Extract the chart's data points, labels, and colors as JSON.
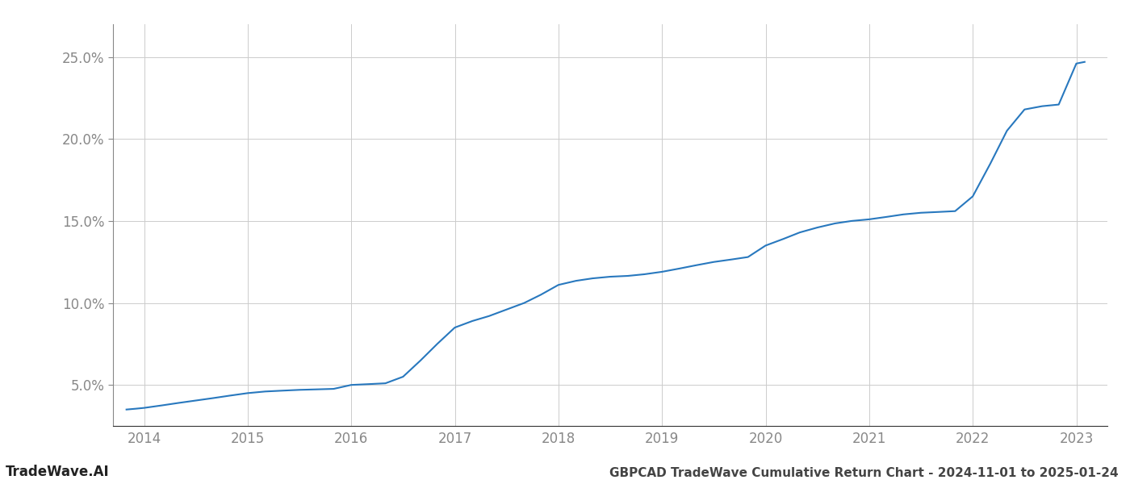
{
  "title": "GBPCAD TradeWave Cumulative Return Chart - 2024-11-01 to 2025-01-24",
  "watermark": "TradeWave.AI",
  "line_color": "#2878be",
  "line_width": 1.5,
  "background_color": "#ffffff",
  "grid_color": "#cccccc",
  "x_years": [
    2014,
    2015,
    2016,
    2017,
    2018,
    2019,
    2020,
    2021,
    2022,
    2023
  ],
  "x_data": [
    2013.83,
    2013.92,
    2014.0,
    2014.17,
    2014.33,
    2014.5,
    2014.67,
    2014.83,
    2015.0,
    2015.17,
    2015.33,
    2015.5,
    2015.67,
    2015.83,
    2016.0,
    2016.17,
    2016.33,
    2016.5,
    2016.67,
    2016.83,
    2017.0,
    2017.17,
    2017.33,
    2017.5,
    2017.67,
    2017.83,
    2018.0,
    2018.17,
    2018.33,
    2018.5,
    2018.67,
    2018.83,
    2019.0,
    2019.17,
    2019.33,
    2019.5,
    2019.67,
    2019.83,
    2020.0,
    2020.17,
    2020.33,
    2020.5,
    2020.67,
    2020.83,
    2021.0,
    2021.17,
    2021.33,
    2021.5,
    2021.67,
    2021.83,
    2022.0,
    2022.17,
    2022.33,
    2022.5,
    2022.67,
    2022.83,
    2023.0,
    2023.08
  ],
  "y_data": [
    3.5,
    3.55,
    3.6,
    3.75,
    3.9,
    4.05,
    4.2,
    4.35,
    4.5,
    4.6,
    4.65,
    4.7,
    4.73,
    4.76,
    5.0,
    5.05,
    5.1,
    5.5,
    6.5,
    7.5,
    8.5,
    8.9,
    9.2,
    9.6,
    10.0,
    10.5,
    11.1,
    11.35,
    11.5,
    11.6,
    11.65,
    11.75,
    11.9,
    12.1,
    12.3,
    12.5,
    12.65,
    12.8,
    13.5,
    13.9,
    14.3,
    14.6,
    14.85,
    15.0,
    15.1,
    15.25,
    15.4,
    15.5,
    15.55,
    15.6,
    16.5,
    18.5,
    20.5,
    21.8,
    22.0,
    22.1,
    24.6,
    24.7
  ],
  "ylim": [
    2.5,
    27.0
  ],
  "yticks": [
    5.0,
    10.0,
    15.0,
    20.0,
    25.0
  ],
  "xlim": [
    2013.7,
    2023.3
  ],
  "title_fontsize": 11,
  "tick_fontsize": 12,
  "watermark_fontsize": 12,
  "tick_color": "#888888",
  "spine_color": "#888888"
}
